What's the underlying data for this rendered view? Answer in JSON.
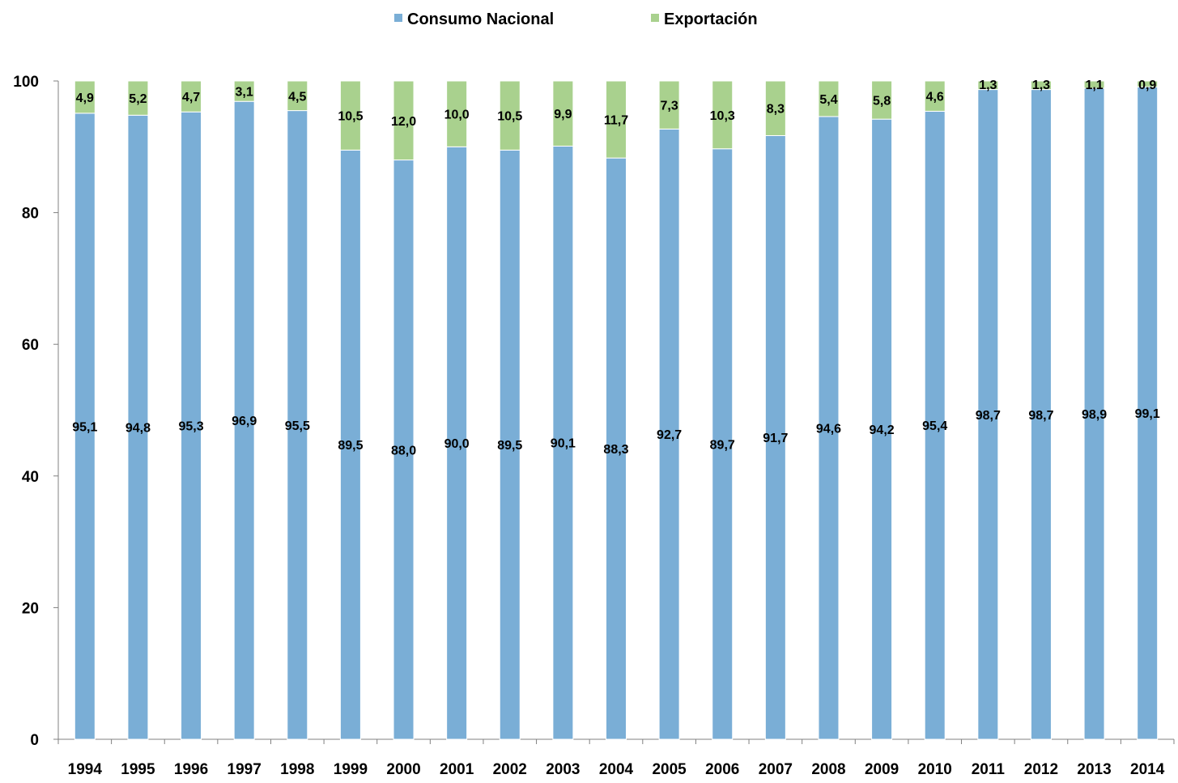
{
  "chart_data": {
    "type": "bar",
    "stacked": true,
    "categories": [
      "1994",
      "1995",
      "1996",
      "1997",
      "1998",
      "1999",
      "2000",
      "2001",
      "2002",
      "2003",
      "2004",
      "2005",
      "2006",
      "2007",
      "2008",
      "2009",
      "2010",
      "2011",
      "2012",
      "2013",
      "2014"
    ],
    "series": [
      {
        "name": "Consumo Nacional",
        "color": "#7aaed6",
        "values": [
          95.1,
          94.8,
          95.3,
          96.9,
          95.5,
          89.5,
          88.0,
          90.0,
          89.5,
          90.1,
          88.3,
          92.7,
          89.7,
          91.7,
          94.6,
          94.2,
          95.4,
          98.7,
          98.7,
          98.9,
          99.1
        ],
        "labels": [
          "95,1",
          "94,8",
          "95,3",
          "96,9",
          "95,5",
          "89,5",
          "88,0",
          "90,0",
          "89,5",
          "90,1",
          "88,3",
          "92,7",
          "89,7",
          "91,7",
          "94,6",
          "94,2",
          "95,4",
          "98,7",
          "98,7",
          "98,9",
          "99,1"
        ]
      },
      {
        "name": "Exportación",
        "color": "#a9d18e",
        "values": [
          4.9,
          5.2,
          4.7,
          3.1,
          4.5,
          10.5,
          12.0,
          10.0,
          10.5,
          9.9,
          11.7,
          7.3,
          10.3,
          8.3,
          5.4,
          5.8,
          4.6,
          1.3,
          1.3,
          1.1,
          0.9
        ],
        "labels": [
          "4,9",
          "5,2",
          "4,7",
          "3,1",
          "4,5",
          "10,5",
          "12,0",
          "10,0",
          "10,5",
          "9,9",
          "11,7",
          "7,3",
          "10,3",
          "8,3",
          "5,4",
          "5,8",
          "4,6",
          "1,3",
          "1,3",
          "1,1",
          "0,9"
        ]
      }
    ],
    "ylim": [
      0,
      100
    ],
    "yticks": [
      "0",
      "20",
      "40",
      "60",
      "80",
      "100"
    ],
    "legend_position": "top",
    "grid": false
  }
}
